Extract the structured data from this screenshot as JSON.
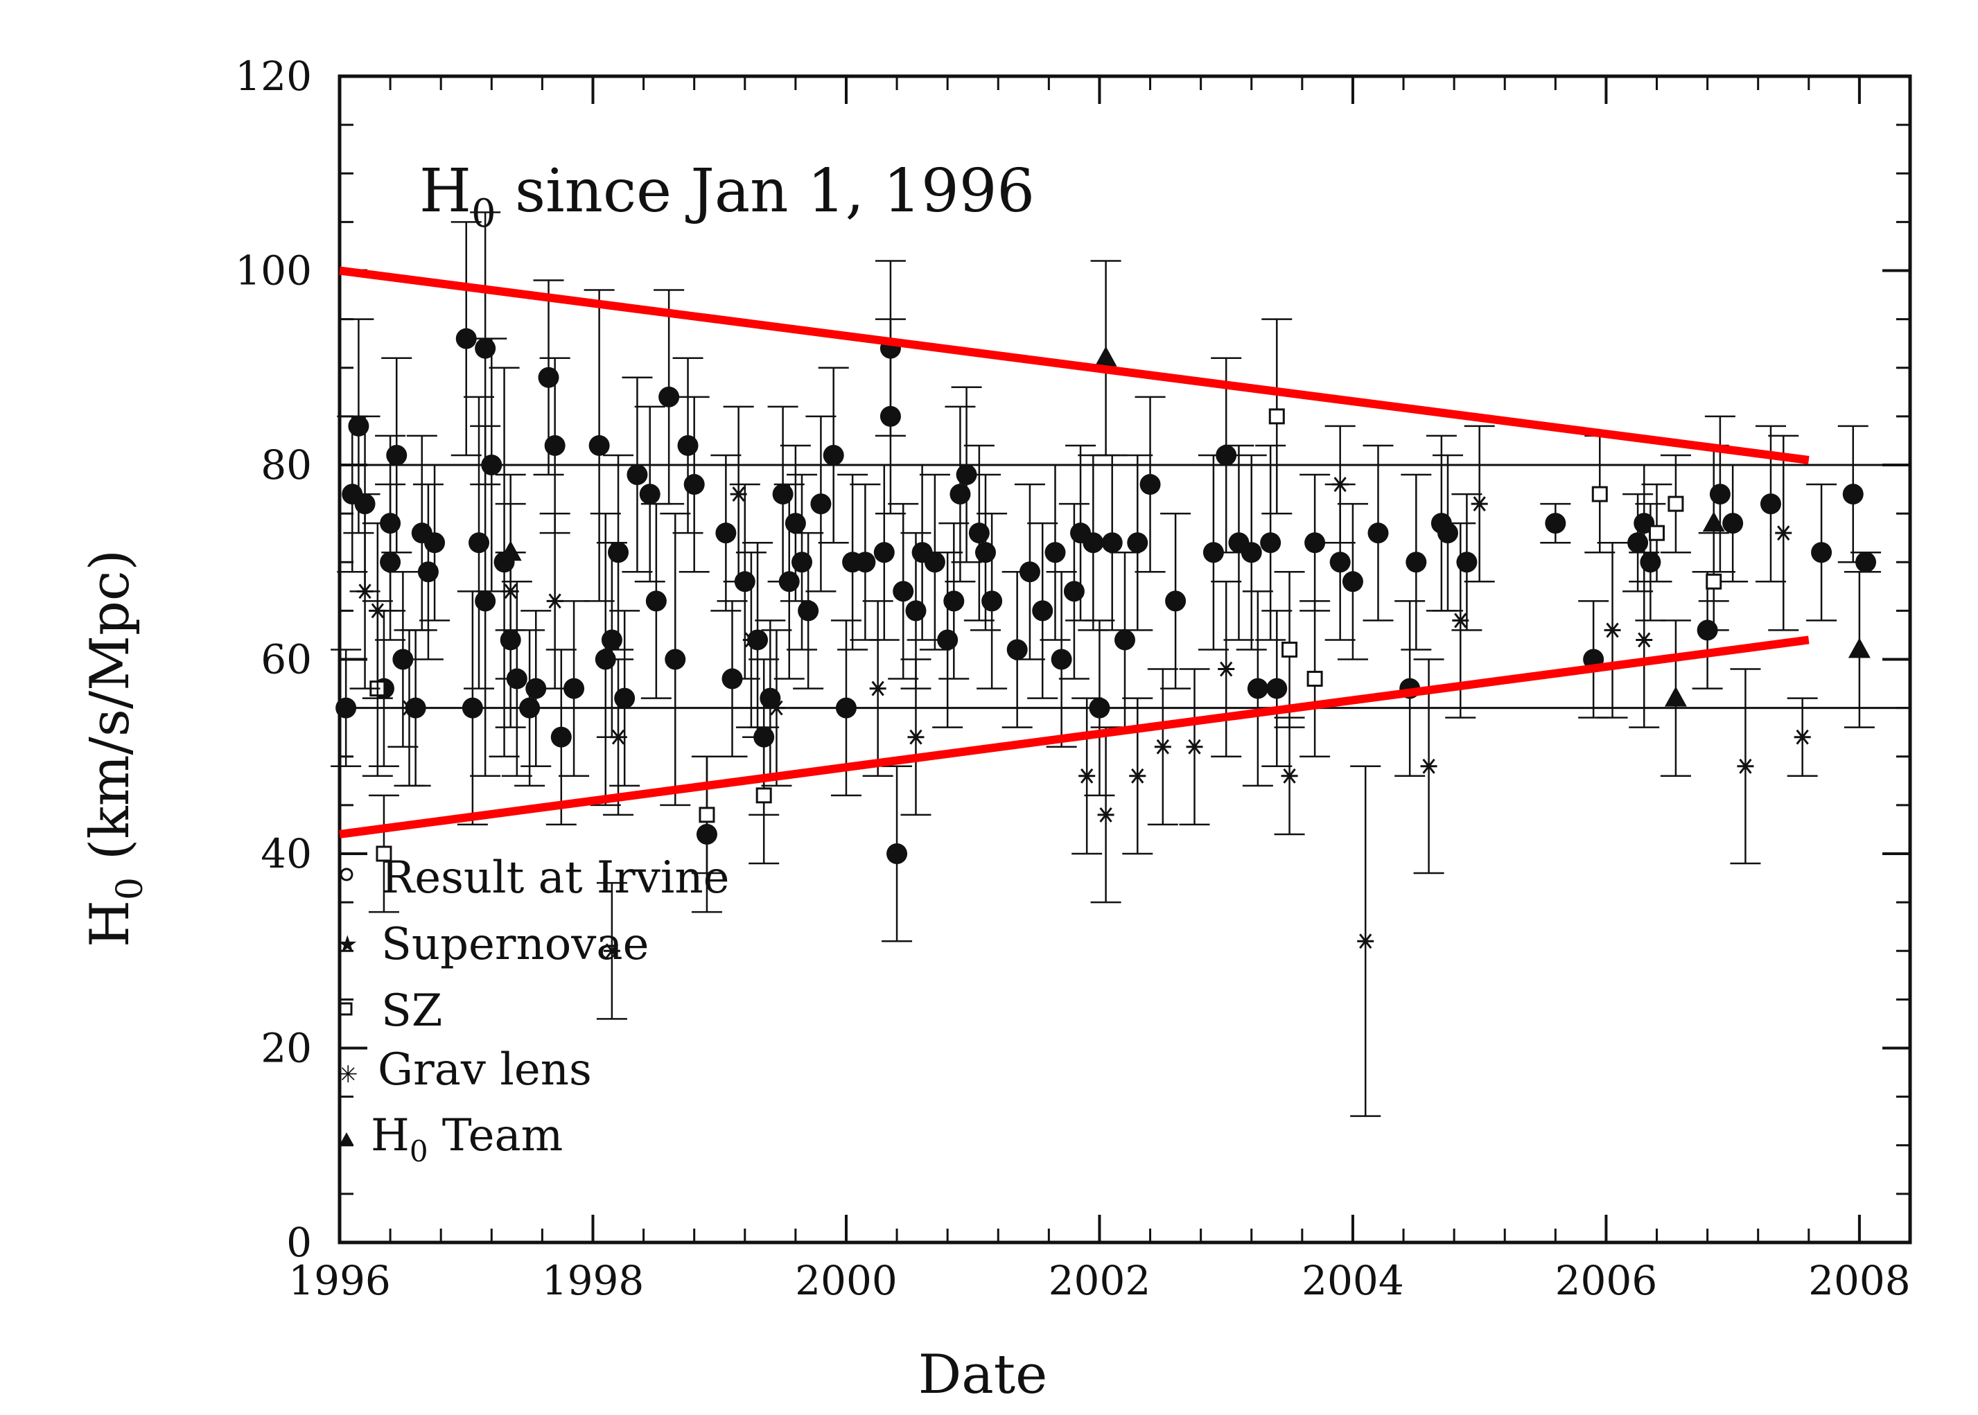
{
  "chart_data": {
    "type": "scatter",
    "title": "H0 since Jan 1, 1996",
    "title_parts": {
      "main": "H",
      "sub": "0",
      "rest": " since Jan 1, 1996"
    },
    "xlabel": "Date",
    "ylabel": "H0 (km/s/Mpc)",
    "ylabel_parts": {
      "main": "H",
      "sub": "0",
      "rest": " (km/s/Mpc)"
    },
    "xlim": [
      1996,
      2008.4
    ],
    "ylim": [
      0,
      120
    ],
    "xticks": [
      1996,
      1998,
      2000,
      2002,
      2004,
      2006,
      2008
    ],
    "xtick_labels": [
      "1996",
      "1998",
      "2000",
      "2002",
      "2004",
      "2006",
      "2008"
    ],
    "yticks": [
      0,
      20,
      40,
      60,
      80,
      100,
      120
    ],
    "ytick_labels": [
      "0",
      "20",
      "40",
      "60",
      "80",
      "100",
      "120"
    ],
    "reference_lines": [
      80,
      55
    ],
    "legend": {
      "placement": "lower-left",
      "entries": [
        {
          "label": "Result at Irvine",
          "marker": "circle-open"
        },
        {
          "label": "Supernovae",
          "marker": "star-filled"
        },
        {
          "label": "SZ",
          "marker": "square-open"
        },
        {
          "label": "Grav lens",
          "marker": "star-cross"
        },
        {
          "label": "H0 Team",
          "marker": "triangle-filled",
          "main": "H",
          "sub": "0",
          "rest": " Team"
        }
      ]
    },
    "trend_lines": [
      {
        "color": "#ff0000",
        "x": [
          1996.0,
          2007.6
        ],
        "y": [
          100,
          80.5
        ]
      },
      {
        "color": "#ff0000",
        "x": [
          1996.0,
          2007.6
        ],
        "y": [
          42,
          62
        ]
      }
    ],
    "series": [
      {
        "marker": "circle-filled",
        "points": [
          [
            1996.05,
            55,
            6
          ],
          [
            1996.1,
            77,
            8
          ],
          [
            1996.15,
            84,
            11
          ],
          [
            1996.2,
            76,
            9
          ],
          [
            1996.35,
            57,
            8
          ],
          [
            1996.4,
            74,
            9
          ],
          [
            1996.4,
            70,
            8
          ],
          [
            1996.45,
            81,
            10
          ],
          [
            1996.5,
            60,
            9
          ],
          [
            1996.6,
            55,
            8
          ],
          [
            1996.65,
            73,
            10
          ],
          [
            1996.7,
            69,
            9
          ],
          [
            1996.75,
            72,
            8
          ],
          [
            1997.0,
            93,
            12
          ],
          [
            1997.05,
            55,
            12
          ],
          [
            1997.1,
            72,
            15
          ],
          [
            1997.15,
            92,
            14
          ],
          [
            1997.15,
            66,
            18
          ],
          [
            1997.2,
            80,
            13
          ],
          [
            1997.3,
            70,
            20
          ],
          [
            1997.35,
            62,
            9
          ],
          [
            1997.4,
            58,
            10
          ],
          [
            1997.5,
            55,
            8
          ],
          [
            1997.55,
            57,
            8
          ],
          [
            1997.65,
            89,
            10
          ],
          [
            1997.7,
            82,
            9
          ],
          [
            1997.75,
            52,
            9
          ],
          [
            1997.85,
            57,
            9
          ],
          [
            1998.05,
            82,
            16
          ],
          [
            1998.1,
            60,
            15
          ],
          [
            1998.15,
            62,
            10
          ],
          [
            1998.2,
            71,
            10
          ],
          [
            1998.25,
            56,
            9
          ],
          [
            1998.35,
            79,
            10
          ],
          [
            1998.45,
            77,
            9
          ],
          [
            1998.5,
            66,
            10
          ],
          [
            1998.6,
            87,
            11
          ],
          [
            1998.65,
            60,
            15
          ],
          [
            1998.75,
            82,
            9
          ],
          [
            1998.8,
            78,
            9
          ],
          [
            1998.9,
            42,
            8
          ],
          [
            1999.05,
            73,
            8
          ],
          [
            1999.1,
            58,
            8
          ],
          [
            1999.2,
            68,
            10
          ],
          [
            1999.3,
            62,
            10
          ],
          [
            1999.35,
            52,
            8
          ],
          [
            1999.4,
            56,
            8
          ],
          [
            1999.5,
            77,
            9
          ],
          [
            1999.55,
            68,
            10
          ],
          [
            1999.6,
            74,
            8
          ],
          [
            1999.65,
            70,
            9
          ],
          [
            1999.7,
            65,
            8
          ],
          [
            1999.8,
            76,
            9
          ],
          [
            1999.9,
            81,
            9
          ],
          [
            2000.0,
            55,
            9
          ],
          [
            2000.05,
            70,
            9
          ],
          [
            2000.15,
            70,
            8
          ],
          [
            2000.3,
            71,
            9
          ],
          [
            2000.35,
            85,
            10
          ],
          [
            2000.35,
            92,
            9
          ],
          [
            2000.4,
            40,
            9
          ],
          [
            2000.45,
            67,
            9
          ],
          [
            2000.55,
            65,
            8
          ],
          [
            2000.6,
            71,
            9
          ],
          [
            2000.7,
            70,
            9
          ],
          [
            2000.8,
            62,
            9
          ],
          [
            2000.85,
            66,
            8
          ],
          [
            2000.9,
            77,
            9
          ],
          [
            2000.95,
            79,
            9
          ],
          [
            2001.05,
            73,
            9
          ],
          [
            2001.1,
            71,
            8
          ],
          [
            2001.15,
            66,
            9
          ],
          [
            2001.35,
            61,
            8
          ],
          [
            2001.45,
            69,
            9
          ],
          [
            2001.55,
            65,
            9
          ],
          [
            2001.65,
            71,
            9
          ],
          [
            2001.7,
            60,
            9
          ],
          [
            2001.8,
            67,
            9
          ],
          [
            2001.85,
            73,
            9
          ],
          [
            2001.95,
            72,
            9
          ],
          [
            2002.0,
            55,
            9
          ],
          [
            2002.1,
            72,
            9
          ],
          [
            2002.2,
            62,
            9
          ],
          [
            2002.3,
            72,
            9
          ],
          [
            2002.4,
            78,
            9
          ],
          [
            2002.6,
            66,
            9
          ],
          [
            2002.9,
            71,
            10
          ],
          [
            2003.0,
            81,
            10
          ],
          [
            2003.1,
            72,
            10
          ],
          [
            2003.2,
            71,
            10
          ],
          [
            2003.25,
            57,
            10
          ],
          [
            2003.35,
            72,
            10
          ],
          [
            2003.4,
            57,
            8
          ],
          [
            2003.7,
            72,
            7
          ],
          [
            2003.9,
            70,
            8
          ],
          [
            2004.0,
            68,
            8
          ],
          [
            2004.2,
            73,
            9
          ],
          [
            2004.45,
            57,
            9
          ],
          [
            2004.5,
            70,
            9
          ],
          [
            2004.7,
            74,
            9
          ],
          [
            2004.75,
            73,
            8
          ],
          [
            2004.9,
            70,
            7
          ],
          [
            2005.6,
            74,
            2
          ],
          [
            2005.9,
            60,
            6
          ],
          [
            2006.25,
            72,
            5
          ],
          [
            2006.3,
            74,
            6
          ],
          [
            2006.35,
            70,
            6
          ],
          [
            2006.8,
            63,
            6
          ],
          [
            2006.9,
            77,
            8
          ],
          [
            2007.0,
            74,
            6
          ],
          [
            2007.3,
            76,
            8
          ],
          [
            2007.7,
            71,
            7
          ],
          [
            2007.95,
            77,
            7
          ],
          [
            2008.05,
            70,
            1
          ]
        ]
      },
      {
        "marker": "triangle-filled",
        "points": [
          [
            1997.35,
            71,
            8
          ],
          [
            2002.05,
            91,
            10
          ],
          [
            2006.55,
            56,
            8
          ],
          [
            2006.85,
            74,
            8
          ],
          [
            2008.0,
            61,
            8
          ]
        ]
      },
      {
        "marker": "square-open",
        "points": [
          [
            1996.3,
            57,
            9
          ],
          [
            1996.35,
            40,
            6
          ],
          [
            1998.9,
            44,
            6
          ],
          [
            1999.35,
            46,
            7
          ],
          [
            2003.4,
            85,
            10
          ],
          [
            2003.5,
            61,
            8
          ],
          [
            2003.7,
            58,
            8
          ],
          [
            2005.95,
            77,
            6
          ],
          [
            2006.4,
            73,
            5
          ],
          [
            2006.55,
            76,
            5
          ],
          [
            2006.85,
            68,
            5
          ]
        ]
      },
      {
        "marker": "star-filled",
        "points": [
          [
            1996.2,
            67,
            10
          ],
          [
            1996.3,
            65,
            9
          ],
          [
            1996.55,
            55,
            8
          ],
          [
            1997.35,
            67,
            9
          ],
          [
            1997.7,
            66,
            9
          ],
          [
            1998.15,
            30,
            7
          ],
          [
            1998.2,
            52,
            8
          ],
          [
            1999.15,
            77,
            9
          ],
          [
            1999.25,
            62,
            9
          ],
          [
            1999.45,
            55,
            8
          ],
          [
            2000.25,
            57,
            9
          ],
          [
            2000.55,
            52,
            8
          ],
          [
            2001.9,
            48,
            8
          ],
          [
            2002.05,
            44,
            9
          ],
          [
            2002.3,
            48,
            8
          ],
          [
            2002.5,
            51,
            8
          ],
          [
            2002.75,
            51,
            8
          ],
          [
            2003.0,
            59,
            9
          ],
          [
            2003.5,
            48,
            6
          ],
          [
            2003.9,
            78,
            6
          ],
          [
            2004.1,
            31,
            18
          ],
          [
            2004.6,
            49,
            11
          ],
          [
            2004.85,
            64,
            10
          ],
          [
            2005.0,
            76,
            8
          ],
          [
            2006.05,
            63,
            9
          ],
          [
            2006.3,
            62,
            9
          ],
          [
            2007.1,
            49,
            10
          ],
          [
            2007.4,
            73,
            10
          ],
          [
            2007.55,
            52,
            4
          ]
        ]
      }
    ]
  }
}
